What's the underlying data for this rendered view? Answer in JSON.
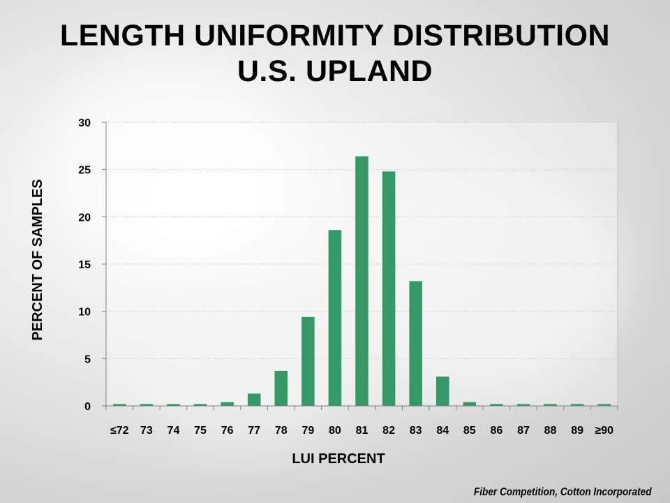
{
  "slide": {
    "title_line1": "LENGTH UNIFORMITY DISTRIBUTION",
    "title_line2": "U.S. UPLAND",
    "footer": "Fiber Competition, Cotton Incorporated"
  },
  "colors": {
    "bar": "#339966",
    "grid": "#bfbfbf",
    "axis": "#7f7f7f"
  },
  "chart_data": {
    "type": "bar",
    "title": "LENGTH UNIFORMITY DISTRIBUTION U.S. UPLAND",
    "xlabel": "LUI PERCENT",
    "ylabel": "PERCENT OF SAMPLES",
    "ylim": [
      0,
      30
    ],
    "yticks": [
      0,
      5,
      10,
      15,
      20,
      25,
      30
    ],
    "grid": true,
    "categories": [
      "≤72",
      "73",
      "74",
      "75",
      "76",
      "77",
      "78",
      "79",
      "80",
      "81",
      "82",
      "83",
      "84",
      "85",
      "86",
      "87",
      "88",
      "89",
      "≥90"
    ],
    "values": [
      0.2,
      0.2,
      0.2,
      0.2,
      0.4,
      1.3,
      3.7,
      9.4,
      18.6,
      26.4,
      24.8,
      13.2,
      3.1,
      0.4,
      0.2,
      0.2,
      0.2,
      0.2,
      0.2
    ]
  }
}
